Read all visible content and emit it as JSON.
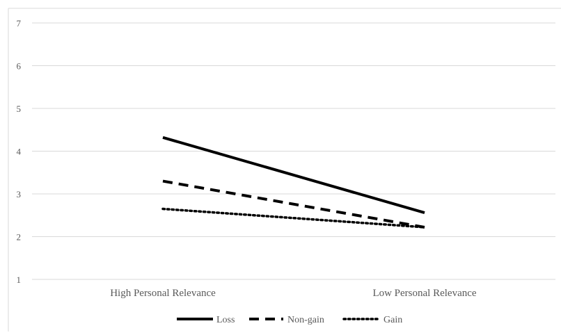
{
  "chart_data": {
    "type": "line",
    "title": "",
    "xlabel": "",
    "ylabel": "",
    "categories": [
      "High Personal Relevance",
      "Low Personal Relevance"
    ],
    "ylim": [
      1,
      7
    ],
    "yticks": [
      "1",
      "2",
      "3",
      "4",
      "5",
      "6",
      "7"
    ],
    "grid": true,
    "legend_position": "bottom",
    "series": [
      {
        "name": "Loss",
        "values": [
          4.32,
          2.56
        ],
        "style": "solid",
        "color": "#000000"
      },
      {
        "name": "Non-gain",
        "values": [
          3.3,
          2.22
        ],
        "style": "dashed",
        "color": "#000000"
      },
      {
        "name": "Gain",
        "values": [
          2.65,
          2.22
        ],
        "style": "dotted",
        "color": "#000000"
      }
    ]
  }
}
